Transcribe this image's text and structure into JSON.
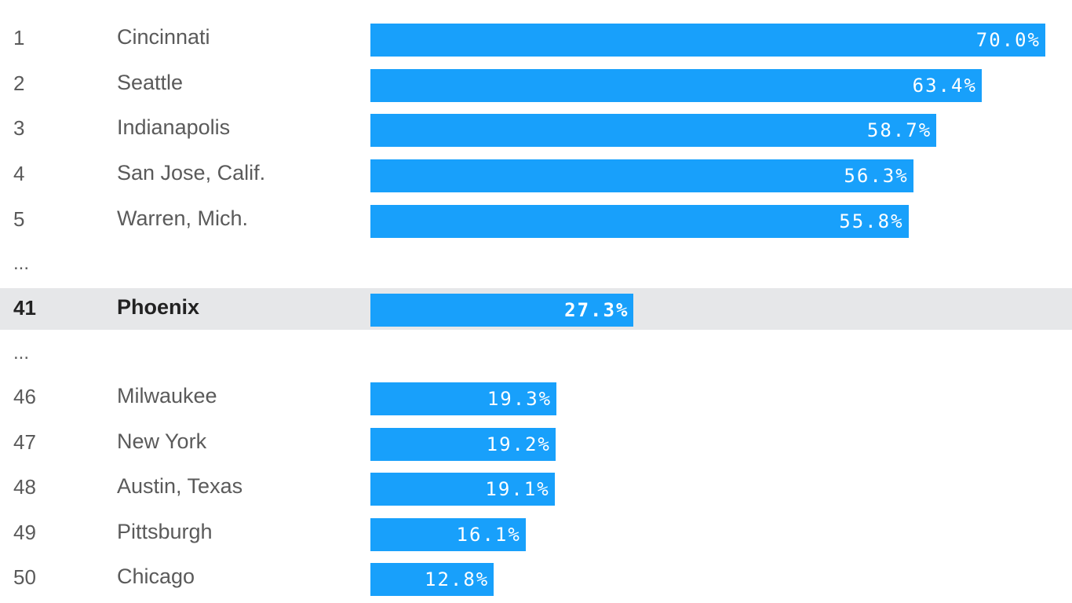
{
  "chart_data": {
    "type": "bar",
    "orientation": "horizontal",
    "unit": "%",
    "xlim": [
      0,
      70
    ],
    "highlight_rank": "41",
    "rows": [
      {
        "rank": "1",
        "city": "Cincinnati",
        "value": 70.0,
        "label": "70.0%"
      },
      {
        "rank": "2",
        "city": "Seattle",
        "value": 63.4,
        "label": "63.4%"
      },
      {
        "rank": "3",
        "city": "Indianapolis",
        "value": 58.7,
        "label": "58.7%"
      },
      {
        "rank": "4",
        "city": "San Jose, Calif.",
        "value": 56.3,
        "label": "56.3%"
      },
      {
        "rank": "5",
        "city": "Warren, Mich.",
        "value": 55.8,
        "label": "55.8%"
      },
      {
        "ellipsis": "..."
      },
      {
        "rank": "41",
        "city": "Phoenix",
        "value": 27.3,
        "label": "27.3%"
      },
      {
        "ellipsis": "..."
      },
      {
        "rank": "46",
        "city": "Milwaukee",
        "value": 19.3,
        "label": "19.3%"
      },
      {
        "rank": "47",
        "city": "New York",
        "value": 19.2,
        "label": "19.2%"
      },
      {
        "rank": "48",
        "city": "Austin, Texas",
        "value": 19.1,
        "label": "19.1%"
      },
      {
        "rank": "49",
        "city": "Pittsburgh",
        "value": 16.1,
        "label": "16.1%"
      },
      {
        "rank": "50",
        "city": "Chicago",
        "value": 12.8,
        "label": "12.8%"
      }
    ]
  },
  "colors": {
    "bar": "#18a0fb",
    "highlight_row": "#e6e7e9"
  }
}
